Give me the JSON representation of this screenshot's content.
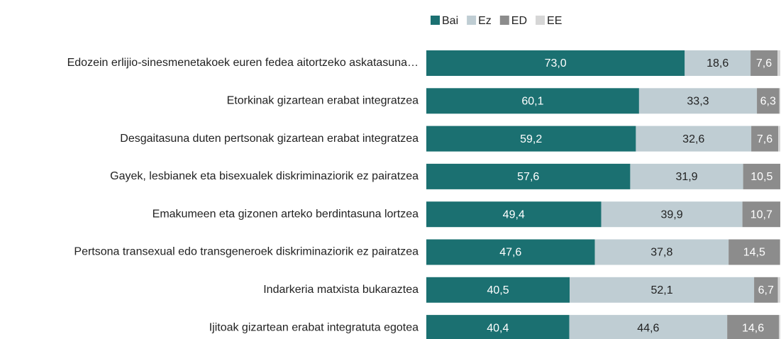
{
  "chart_data": {
    "type": "stacked-bar",
    "orientation": "horizontal",
    "categories": [
      "Edozein erlijio-sinesmenetakoek euren fedea aitortzeko askatasuna…",
      "Etorkinak gizartean erabat integratzea",
      "Desgaitasuna duten pertsonak gizartean erabat integratzea",
      "Gayek, lesbianek eta bisexualek diskriminaziorik ez pairatzea",
      "Emakumeen eta gizonen arteko berdintasuna lortzea",
      "Pertsona transexual edo transgeneroek diskriminaziorik ez pairatzea",
      "Indarkeria matxista bukaraztea",
      "Ijitoak gizartean erabat integratuta egotea"
    ],
    "xlim": [
      0,
      100
    ],
    "legend": "top",
    "series": [
      {
        "name": "Bai",
        "color": "#1b7071",
        "values": [
          73.0,
          60.1,
          59.2,
          57.6,
          49.4,
          47.6,
          40.5,
          40.4
        ],
        "value_labels": [
          "73,0",
          "60,1",
          "59,2",
          "57,6",
          "49,4",
          "47,6",
          "40,5",
          "40,4"
        ]
      },
      {
        "name": "Ez",
        "color": "#bfcdd3",
        "values": [
          18.6,
          33.3,
          32.6,
          31.9,
          39.9,
          37.8,
          52.1,
          44.6
        ],
        "value_labels": [
          "18,6",
          "33,3",
          "32,6",
          "31,9",
          "39,9",
          "37,8",
          "52,1",
          "44,6"
        ]
      },
      {
        "name": "ED",
        "color": "#8c8c8c",
        "values": [
          7.6,
          6.3,
          7.6,
          10.5,
          10.7,
          14.5,
          6.7,
          14.6
        ],
        "value_labels": [
          "7,6",
          "6,3",
          "7,6",
          "10,5",
          "10,7",
          "14,5",
          "6,7",
          "14,6"
        ]
      },
      {
        "name": "EE",
        "color": "#d6d6d6",
        "values": [
          0.8,
          0.3,
          0.6,
          0,
          0,
          0.1,
          0.7,
          0.4
        ]
      }
    ]
  }
}
